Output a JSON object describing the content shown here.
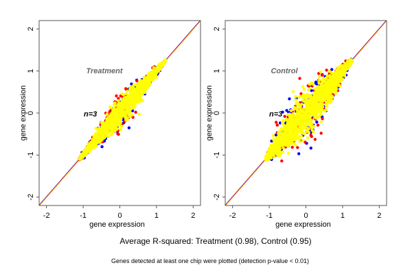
{
  "chart_data": [
    {
      "type": "scatter",
      "title": "Treatment",
      "annotation": "n=3",
      "xlabel": "gene expression",
      "ylabel": "gene expression",
      "xlim": [
        -2.2,
        2.2
      ],
      "ylim": [
        -2.2,
        2.2
      ],
      "xticks": [
        "-2",
        "-1",
        "0",
        "1",
        "2"
      ],
      "yticks": [
        "-2",
        "-1",
        "0",
        "1",
        "2"
      ],
      "diagonal": {
        "from": [
          -2.2,
          -2.2
        ],
        "to": [
          2.2,
          2.2
        ],
        "colors": [
          "#0000ff",
          "#ff0000",
          "#ffa500"
        ]
      },
      "cloud": {
        "x_range": [
          -1.1,
          1.25
        ],
        "spread": 0.18,
        "colors": [
          "#0000ff",
          "#ff0000",
          "#ffff00"
        ]
      },
      "series_colors": {
        "chip1": "#0000ff",
        "chip2": "#ff0000",
        "chip3": "#ffff00"
      }
    },
    {
      "type": "scatter",
      "title": "Control",
      "annotation": "n=3",
      "xlabel": "gene expression",
      "ylabel": "gene expression",
      "xlim": [
        -2.2,
        2.2
      ],
      "ylim": [
        -2.2,
        2.2
      ],
      "xticks": [
        "-2",
        "-1",
        "0",
        "1",
        "2"
      ],
      "yticks": [
        "-2",
        "-1",
        "0",
        "1",
        "2"
      ],
      "diagonal": {
        "from": [
          -2.2,
          -2.2
        ],
        "to": [
          2.2,
          2.2
        ],
        "colors": [
          "#0000ff",
          "#ff0000",
          "#ffa500"
        ]
      },
      "cloud": {
        "x_range": [
          -1.1,
          1.25
        ],
        "spread": 0.32,
        "colors": [
          "#0000ff",
          "#ff0000",
          "#ffff00"
        ]
      },
      "series_colors": {
        "chip1": "#0000ff",
        "chip2": "#ff0000",
        "chip3": "#ffff00"
      }
    }
  ],
  "footer": {
    "main": "Average R-squared: Treatment (0.98), Control (0.95)",
    "sub": "Genes detected at least one chip were plotted (detection p-value < 0.01)"
  }
}
